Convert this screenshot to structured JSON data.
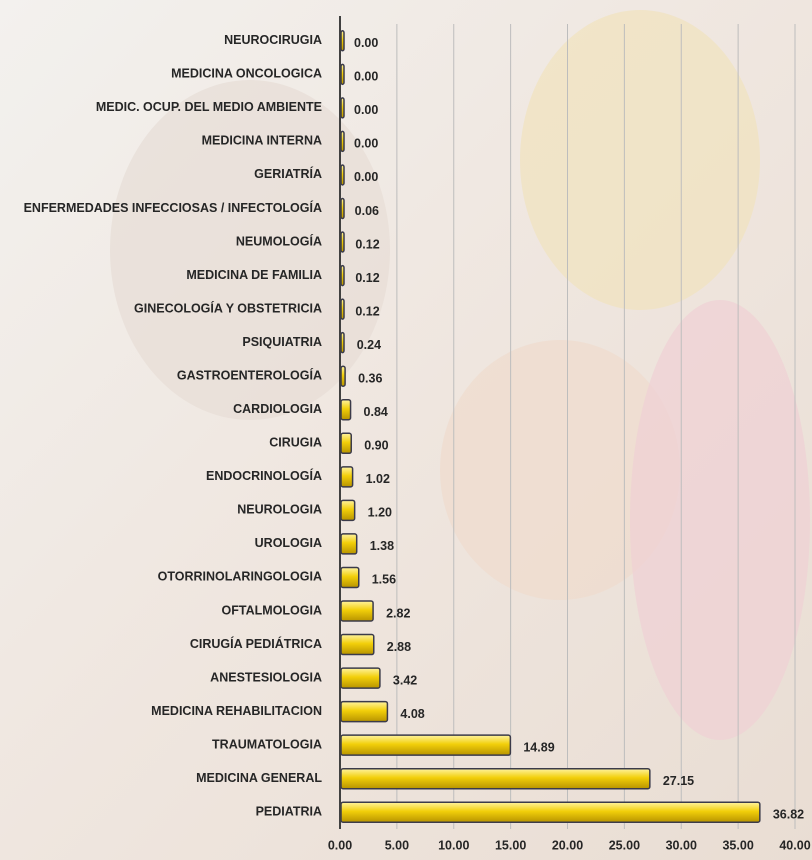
{
  "chart_data": {
    "type": "barh",
    "categories": [
      "NEUROCIRUGIA",
      "MEDICINA ONCOLOGICA",
      "MEDIC. OCUP.  DEL MEDIO AMBIENTE",
      "MEDICINA INTERNA",
      "GERIATRÍA",
      "ENFERMEDADES INFECCIOSAS / INFECTOLOGÍA",
      "NEUMOLOGÍA",
      "MEDICINA DE FAMILIA",
      "GINECOLOGÍA Y OBSTETRICIA",
      "PSIQUIATRIA",
      "GASTROENTEROLOGÍA",
      "CARDIOLOGIA",
      "CIRUGIA",
      "ENDOCRINOLOGÍA",
      "NEUROLOGIA",
      "UROLOGIA",
      "OTORRINOLARINGOLOGIA",
      "OFTALMOLOGIA",
      "CIRUGÍA PEDIÁTRICA",
      "ANESTESIOLOGIA",
      "MEDICINA REHABILITACION",
      "TRAUMATOLOGIA",
      "MEDICINA GENERAL",
      "PEDIATRIA"
    ],
    "values": [
      0,
      0,
      0,
      0,
      0,
      0.06,
      0.12,
      0.12,
      0.12,
      0.24,
      0.36,
      0.84,
      0.9,
      1.02,
      1.2,
      1.38,
      1.56,
      2.82,
      2.88,
      3.42,
      4.08,
      14.89,
      27.15,
      36.82
    ],
    "value_labels": [
      "0.00",
      "0.00",
      "0.00",
      "0.00",
      "0.00",
      "0.06",
      "0.12",
      "0.12",
      "0.12",
      "0.24",
      "0.36",
      "0.84",
      "0.90",
      "1.02",
      "1.20",
      "1.38",
      "1.56",
      "2.82",
      "2.88",
      "3.42",
      "4.08",
      "14.89",
      "27.15",
      "36.82"
    ],
    "color": "#f2cf0a",
    "xlim": [
      0,
      40
    ],
    "xticks": [
      {
        "value": 0,
        "label": "0.00"
      },
      {
        "value": 5,
        "label": "5.00"
      },
      {
        "value": 10,
        "label": "10.00"
      },
      {
        "value": 15,
        "label": "15.00"
      },
      {
        "value": 20,
        "label": "20.00"
      },
      {
        "value": 25,
        "label": "25.00"
      },
      {
        "value": 30,
        "label": "30.00"
      },
      {
        "value": 35,
        "label": "35.00"
      },
      {
        "value": 40,
        "label": "40.00"
      }
    ],
    "grid": true
  }
}
